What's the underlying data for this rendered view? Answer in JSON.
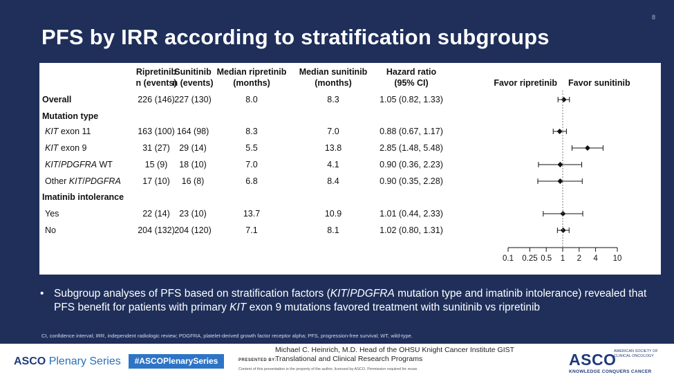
{
  "slide_number": "8",
  "title": "PFS by IRR according to stratification subgroups",
  "chart_data": {
    "type": "forest",
    "headers": {
      "ripretinib": [
        "Ripretinib",
        "n (events)"
      ],
      "sunitinib": [
        "Sunitinib",
        "n (events)"
      ],
      "median_ripretinib": [
        "Median ripretinib",
        "(months)"
      ],
      "median_sunitinib": [
        "Median sunitinib",
        "(months)"
      ],
      "hr": [
        "Hazard ratio",
        "(95% CI)"
      ],
      "favor_left": "Favor ripretinib",
      "favor_right": "Favor sunitinib"
    },
    "rows": [
      {
        "kind": "data",
        "label": "Overall",
        "bold": true,
        "rip": "226 (146)",
        "sun": "227 (130)",
        "med_rip": "8.0",
        "med_sun": "8.3",
        "hr_text": "1.05 (0.82, 1.33)",
        "hr": 1.05,
        "lo": 0.82,
        "hi": 1.33
      },
      {
        "kind": "header",
        "label": "Mutation type"
      },
      {
        "kind": "data",
        "label_parts": [
          {
            "t": "KIT",
            "i": true
          },
          {
            "t": " exon 11",
            "i": false
          }
        ],
        "rip": "163 (100)",
        "sun": "164 (98)",
        "med_rip": "8.3",
        "med_sun": "7.0",
        "hr_text": "0.88 (0.67, 1.17)",
        "hr": 0.88,
        "lo": 0.67,
        "hi": 1.17
      },
      {
        "kind": "data",
        "label_parts": [
          {
            "t": "KIT",
            "i": true
          },
          {
            "t": " exon 9",
            "i": false
          }
        ],
        "rip": "31 (27)",
        "sun": "29 (14)",
        "med_rip": "5.5",
        "med_sun": "13.8",
        "hr_text": "2.85 (1.48, 5.48)",
        "hr": 2.85,
        "lo": 1.48,
        "hi": 5.48
      },
      {
        "kind": "data",
        "label_parts": [
          {
            "t": "KIT",
            "i": true
          },
          {
            "t": "/",
            "i": false
          },
          {
            "t": "PDGFRA",
            "i": true
          },
          {
            "t": " WT",
            "i": false
          }
        ],
        "rip": "15 (9)",
        "sun": "18 (10)",
        "med_rip": "7.0",
        "med_sun": "4.1",
        "hr_text": "0.90 (0.36, 2.23)",
        "hr": 0.9,
        "lo": 0.36,
        "hi": 2.23
      },
      {
        "kind": "data",
        "label_parts": [
          {
            "t": "Other ",
            "i": false
          },
          {
            "t": "KIT",
            "i": true
          },
          {
            "t": "/",
            "i": false
          },
          {
            "t": "PDGFRA",
            "i": true
          }
        ],
        "rip": "17 (10)",
        "sun": "16 (8)",
        "med_rip": "6.8",
        "med_sun": "8.4",
        "hr_text": "0.90 (0.35, 2.28)",
        "hr": 0.9,
        "lo": 0.35,
        "hi": 2.28
      },
      {
        "kind": "header",
        "label": "Imatinib intolerance"
      },
      {
        "kind": "data",
        "label": "Yes",
        "rip": "22 (14)",
        "sun": "23 (10)",
        "med_rip": "13.7",
        "med_sun": "10.9",
        "hr_text": "1.01 (0.44, 2.33)",
        "hr": 1.01,
        "lo": 0.44,
        "hi": 2.33
      },
      {
        "kind": "data",
        "label": "No",
        "rip": "204 (132)",
        "sun": "204 (120)",
        "med_rip": "7.1",
        "med_sun": "8.1",
        "hr_text": "1.02 (0.80, 1.31)",
        "hr": 1.02,
        "lo": 0.8,
        "hi": 1.31
      }
    ],
    "x_scale": "log",
    "xlim": [
      0.1,
      10
    ],
    "x_ticks": [
      0.1,
      0.25,
      0.5,
      1,
      2,
      4,
      10
    ],
    "x_tick_labels": [
      "0.1",
      "0.25",
      "0.5",
      "1",
      "2",
      "4",
      "10"
    ],
    "reference_line": 1
  },
  "bullet": {
    "parts": [
      {
        "t": "Subgroup analyses of PFS based on stratification factors (",
        "i": false
      },
      {
        "t": "KIT",
        "i": true
      },
      {
        "t": "/",
        "i": false
      },
      {
        "t": "PDGFRA",
        "i": true
      },
      {
        "t": " mutation type and imatinib intolerance) revealed that PFS benefit for patients with primary ",
        "i": false
      },
      {
        "t": "KIT",
        "i": true
      },
      {
        "t": " exon 9 mutations favored treatment with sunitinib vs ripretinib",
        "i": false
      }
    ]
  },
  "footnote": "CI, confidence interval; IRR, independent radiologic review; PDGFRA, platelet-derived growth factor receptor alpha; PFS, progression-free survival; WT, wild-type.",
  "footer": {
    "asco_plenary_bold": "ASCO",
    "asco_plenary_thin": "Plenary Series",
    "hashtag": "#ASCOPlenarySeries",
    "presented_by": "PRESENTED BY:",
    "presenter_line1": "Michael C. Heinrich, M.D. Head of the OHSU Knight Cancer Institute GIST",
    "presenter_line2": "Translational and Clinical Research Programs",
    "copyright": "Content of this presentation is the property of the author, licensed by ASCO. Permission required for reuse.",
    "asco_logo": "ASCO",
    "asco_society": "AMERICAN SOCIETY OF CLINICAL ONCOLOGY",
    "asco_tagline": "KNOWLEDGE CONQUERS CANCER"
  }
}
